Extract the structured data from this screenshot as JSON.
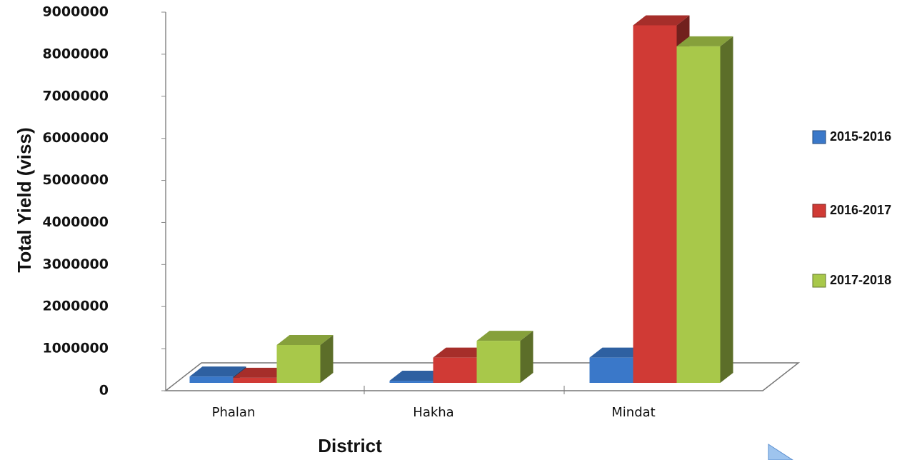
{
  "chart_data": {
    "type": "bar3d",
    "x_label": "District",
    "y_label": "Total Yield (viss)",
    "categories": [
      "Phalan",
      "Hakha",
      "Mindat"
    ],
    "series": [
      {
        "name": "2015-2016",
        "color": "#3a78c9",
        "values": [
          150000,
          50000,
          600000
        ]
      },
      {
        "name": "2016-2017",
        "color": "#d03a35",
        "values": [
          120000,
          600000,
          8500000
        ]
      },
      {
        "name": "2017-2018",
        "color": "#a8c84a",
        "values": [
          900000,
          1000000,
          8000000
        ]
      }
    ],
    "ylim": [
      0,
      9000000
    ],
    "yticks": [
      0,
      1000000,
      2000000,
      3000000,
      4000000,
      5000000,
      6000000,
      7000000,
      8000000,
      9000000
    ],
    "legend": "right"
  }
}
